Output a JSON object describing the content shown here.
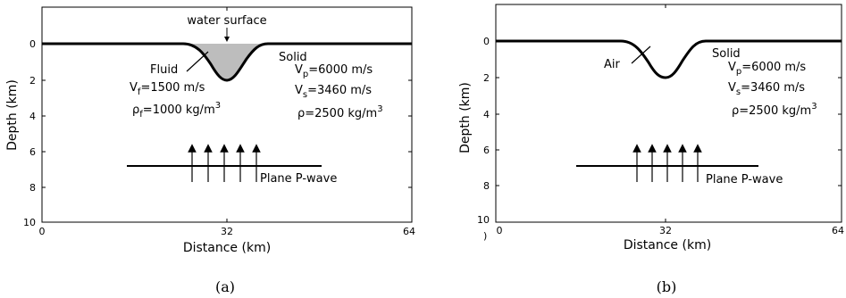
{
  "panels": [
    {
      "caption": "(a)",
      "xlabel": "Distance (km)",
      "ylabel": "Depth (km)",
      "x_ticks": [
        "0",
        "32",
        "64"
      ],
      "y_ticks": [
        "0",
        "2",
        "4",
        "6",
        "8",
        "10"
      ],
      "labels": {
        "top": "water surface",
        "region_left": "Fluid",
        "left_v_main": "V",
        "left_v_sub": "f",
        "left_v_val": "=1500 m/s",
        "left_rho_main": "ρ",
        "left_rho_sub": "f",
        "left_rho_val": "=1000 kg/m",
        "left_rho_sup": "3",
        "region_right": "Solid",
        "vp_main": "V",
        "vp_sub": "p",
        "vp_val": "=6000 m/s",
        "vs_main": "V",
        "vs_sub": "s",
        "vs_val": "=3460 m/s",
        "rho_text": "ρ=2500 kg/m",
        "rho_sup": "3",
        "wave": "Plane P-wave"
      },
      "fill_color": "#bdbdbd"
    },
    {
      "caption": "(b)",
      "xlabel": "Distance (km)",
      "ylabel": "Depth (km)",
      "x_ticks": [
        "0",
        "32",
        "64"
      ],
      "y_ticks": [
        "0",
        "2",
        "4",
        "6",
        "8",
        "10"
      ],
      "stray_mark": ")",
      "labels": {
        "region_left": "Air",
        "region_right": "Solid",
        "vp_main": "V",
        "vp_sub": "p",
        "vp_val": "=6000 m/s",
        "vs_main": "V",
        "vs_sub": "s",
        "vs_val": "=3460 m/s",
        "rho_text": "ρ=2500 kg/m",
        "rho_sup": "3",
        "wave": "Plane P-wave"
      }
    }
  ]
}
